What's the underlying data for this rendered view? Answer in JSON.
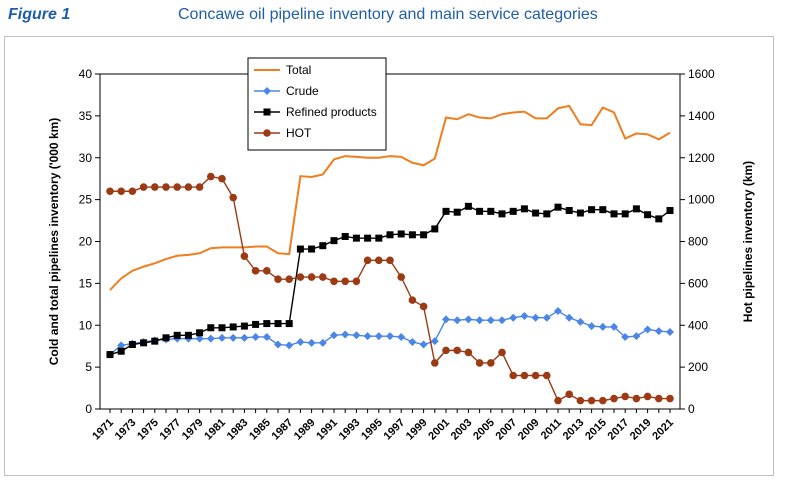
{
  "figure": {
    "label": "Figure 1",
    "title": "Concawe oil pipeline inventory and main service categories"
  },
  "colors": {
    "total": "#f07d1e",
    "crude": "#4a86e8",
    "refined": "#000000",
    "hot": "#9c3a14"
  },
  "chart_data": {
    "type": "line",
    "x": [
      1971,
      1972,
      1973,
      1974,
      1975,
      1976,
      1977,
      1978,
      1979,
      1980,
      1981,
      1982,
      1983,
      1984,
      1985,
      1986,
      1987,
      1988,
      1989,
      1990,
      1991,
      1992,
      1993,
      1994,
      1995,
      1996,
      1997,
      1998,
      1999,
      2000,
      2001,
      2002,
      2003,
      2004,
      2005,
      2006,
      2007,
      2008,
      2009,
      2010,
      2011,
      2012,
      2013,
      2014,
      2015,
      2016,
      2017,
      2018,
      2019,
      2020,
      2021
    ],
    "x_tick_labels": [
      "1971",
      "1973",
      "1975",
      "1977",
      "1979",
      "1981",
      "1983",
      "1985",
      "1987",
      "1989",
      "1991",
      "1993",
      "1995",
      "1997",
      "1999",
      "2001",
      "2003",
      "2005",
      "2007",
      "2009",
      "2011",
      "2013",
      "2015",
      "2017",
      "2019",
      "2021"
    ],
    "y_left": {
      "label": "Cold and total pipelines inventory ('000 km)",
      "range": [
        0,
        40
      ],
      "ticks": [
        "0",
        "5",
        "10",
        "15",
        "20",
        "25",
        "30",
        "35",
        "40"
      ]
    },
    "y_right": {
      "label": "Hot pipelines inventory (km)",
      "range": [
        0,
        1600
      ],
      "ticks": [
        "0",
        "200",
        "400",
        "600",
        "800",
        "1000",
        "1200",
        "1400",
        "1600"
      ]
    },
    "legend_position": "top-center",
    "grid": false,
    "series": [
      {
        "name": "Total",
        "axis": "left",
        "marker": "none",
        "values": [
          14.2,
          15.6,
          16.5,
          17.0,
          17.4,
          17.9,
          18.3,
          18.4,
          18.6,
          19.2,
          19.3,
          19.3,
          19.3,
          19.4,
          19.4,
          18.6,
          18.5,
          27.8,
          27.7,
          28.0,
          29.8,
          30.2,
          30.1,
          30.0,
          30.0,
          30.2,
          30.1,
          29.4,
          29.1,
          29.9,
          34.8,
          34.6,
          35.2,
          34.8,
          34.7,
          35.2,
          35.4,
          35.5,
          34.7,
          34.7,
          35.9,
          36.2,
          34.0,
          33.9,
          36.0,
          35.4,
          32.3,
          32.9,
          32.8,
          32.2,
          33.0
        ]
      },
      {
        "name": "Crude",
        "axis": "left",
        "marker": "diamond",
        "values": [
          6.5,
          7.6,
          7.8,
          8.0,
          8.2,
          8.3,
          8.4,
          8.4,
          8.4,
          8.4,
          8.5,
          8.5,
          8.5,
          8.6,
          8.6,
          7.7,
          7.6,
          8.0,
          7.9,
          7.9,
          8.8,
          8.9,
          8.8,
          8.7,
          8.7,
          8.7,
          8.6,
          8.0,
          7.7,
          8.1,
          10.7,
          10.6,
          10.7,
          10.6,
          10.6,
          10.6,
          10.9,
          11.1,
          10.9,
          10.9,
          11.7,
          10.9,
          10.4,
          9.9,
          9.8,
          9.8,
          8.6,
          8.7,
          9.5,
          9.3,
          9.2
        ]
      },
      {
        "name": "Refined products",
        "axis": "left",
        "marker": "square",
        "values": [
          6.5,
          6.9,
          7.7,
          7.9,
          8.1,
          8.5,
          8.8,
          8.8,
          9.1,
          9.7,
          9.7,
          9.8,
          9.9,
          10.1,
          10.2,
          10.2,
          10.2,
          19.1,
          19.1,
          19.5,
          20.1,
          20.6,
          20.4,
          20.4,
          20.4,
          20.8,
          20.9,
          20.8,
          20.8,
          21.5,
          23.6,
          23.5,
          24.2,
          23.6,
          23.6,
          23.3,
          23.6,
          23.9,
          23.4,
          23.3,
          24.1,
          23.7,
          23.4,
          23.8,
          23.8,
          23.3,
          23.3,
          23.9,
          23.2,
          22.7,
          23.7
        ]
      },
      {
        "name": "HOT",
        "axis": "right",
        "marker": "circle",
        "values": [
          1040,
          1040,
          1040,
          1060,
          1060,
          1060,
          1060,
          1060,
          1060,
          1110,
          1100,
          1010,
          730,
          660,
          660,
          620,
          620,
          630,
          630,
          630,
          610,
          610,
          610,
          710,
          710,
          710,
          630,
          520,
          490,
          220,
          280,
          280,
          270,
          220,
          220,
          270,
          160,
          160,
          160,
          160,
          40,
          70,
          40,
          40,
          40,
          50,
          60,
          50,
          60,
          50,
          50
        ]
      }
    ]
  }
}
